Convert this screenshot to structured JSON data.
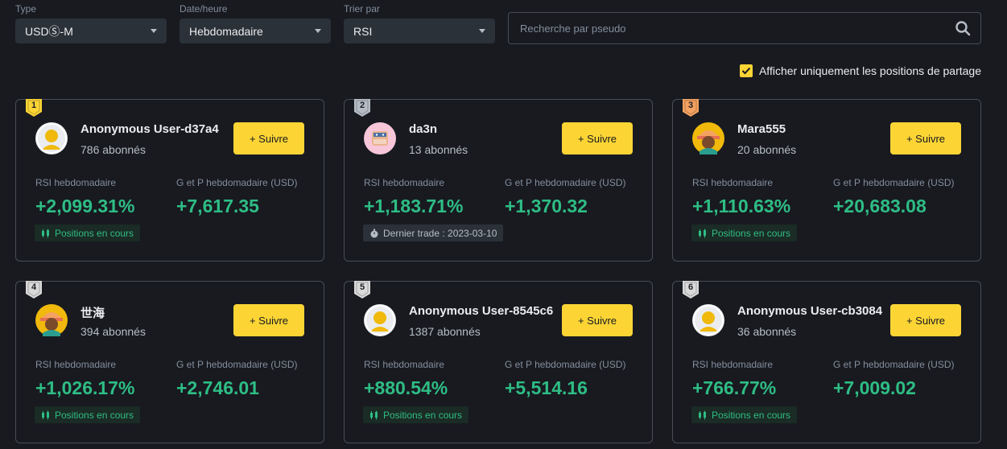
{
  "filters": {
    "type": {
      "label": "Type",
      "value": "USDⓈ-M"
    },
    "date": {
      "label": "Date/heure",
      "value": "Hebdomadaire"
    },
    "sort": {
      "label": "Trier par",
      "value": "RSI"
    }
  },
  "search": {
    "placeholder": "Recherche par pseudo"
  },
  "share_only": {
    "label": "Afficher uniquement les positions de partage",
    "checked": true
  },
  "metric_labels": {
    "roi": "RSI hebdomadaire",
    "pnl": "G et P hebdomadaire (USD)"
  },
  "follow_label": "+ Suivre",
  "colors": {
    "accent": "#fcd535",
    "positive": "#2ebd85",
    "bg": "#181a20"
  },
  "traders": [
    {
      "rank": "1",
      "medal": "gold",
      "name": "Anonymous User-d37a4",
      "subscribers": "786 abonnés",
      "avatar": "default-avatar",
      "roi": "+2,099.31%",
      "pnl": "+7,617.35",
      "tag_type": "open",
      "tag": "Positions en cours"
    },
    {
      "rank": "2",
      "medal": "silver",
      "name": "da3n",
      "subscribers": "13 abonnés",
      "avatar": "pink-avatar",
      "roi": "+1,183.71%",
      "pnl": "+1,370.32",
      "tag_type": "last",
      "tag": "Dernier trade : 2023-03-10"
    },
    {
      "rank": "3",
      "medal": "bronze",
      "name": "Mara555",
      "subscribers": "20 abonnés",
      "avatar": "helmet-avatar",
      "roi": "+1,110.63%",
      "pnl": "+20,683.08",
      "tag_type": "open",
      "tag": "Positions en cours"
    },
    {
      "rank": "4",
      "medal": "plain",
      "name": "世海",
      "subscribers": "394 abonnés",
      "avatar": "helmet-avatar",
      "roi": "+1,026.17%",
      "pnl": "+2,746.01",
      "tag_type": "open",
      "tag": "Positions en cours"
    },
    {
      "rank": "5",
      "medal": "plain",
      "name": "Anonymous User-8545c6",
      "subscribers": "1387 abonnés",
      "avatar": "default-avatar",
      "roi": "+880.54%",
      "pnl": "+5,514.16",
      "tag_type": "open",
      "tag": "Positions en cours"
    },
    {
      "rank": "6",
      "medal": "plain",
      "name": "Anonymous User-cb3084",
      "subscribers": "36 abonnés",
      "avatar": "default-avatar",
      "roi": "+766.77%",
      "pnl": "+7,009.02",
      "tag_type": "open",
      "tag": "Positions en cours"
    }
  ]
}
